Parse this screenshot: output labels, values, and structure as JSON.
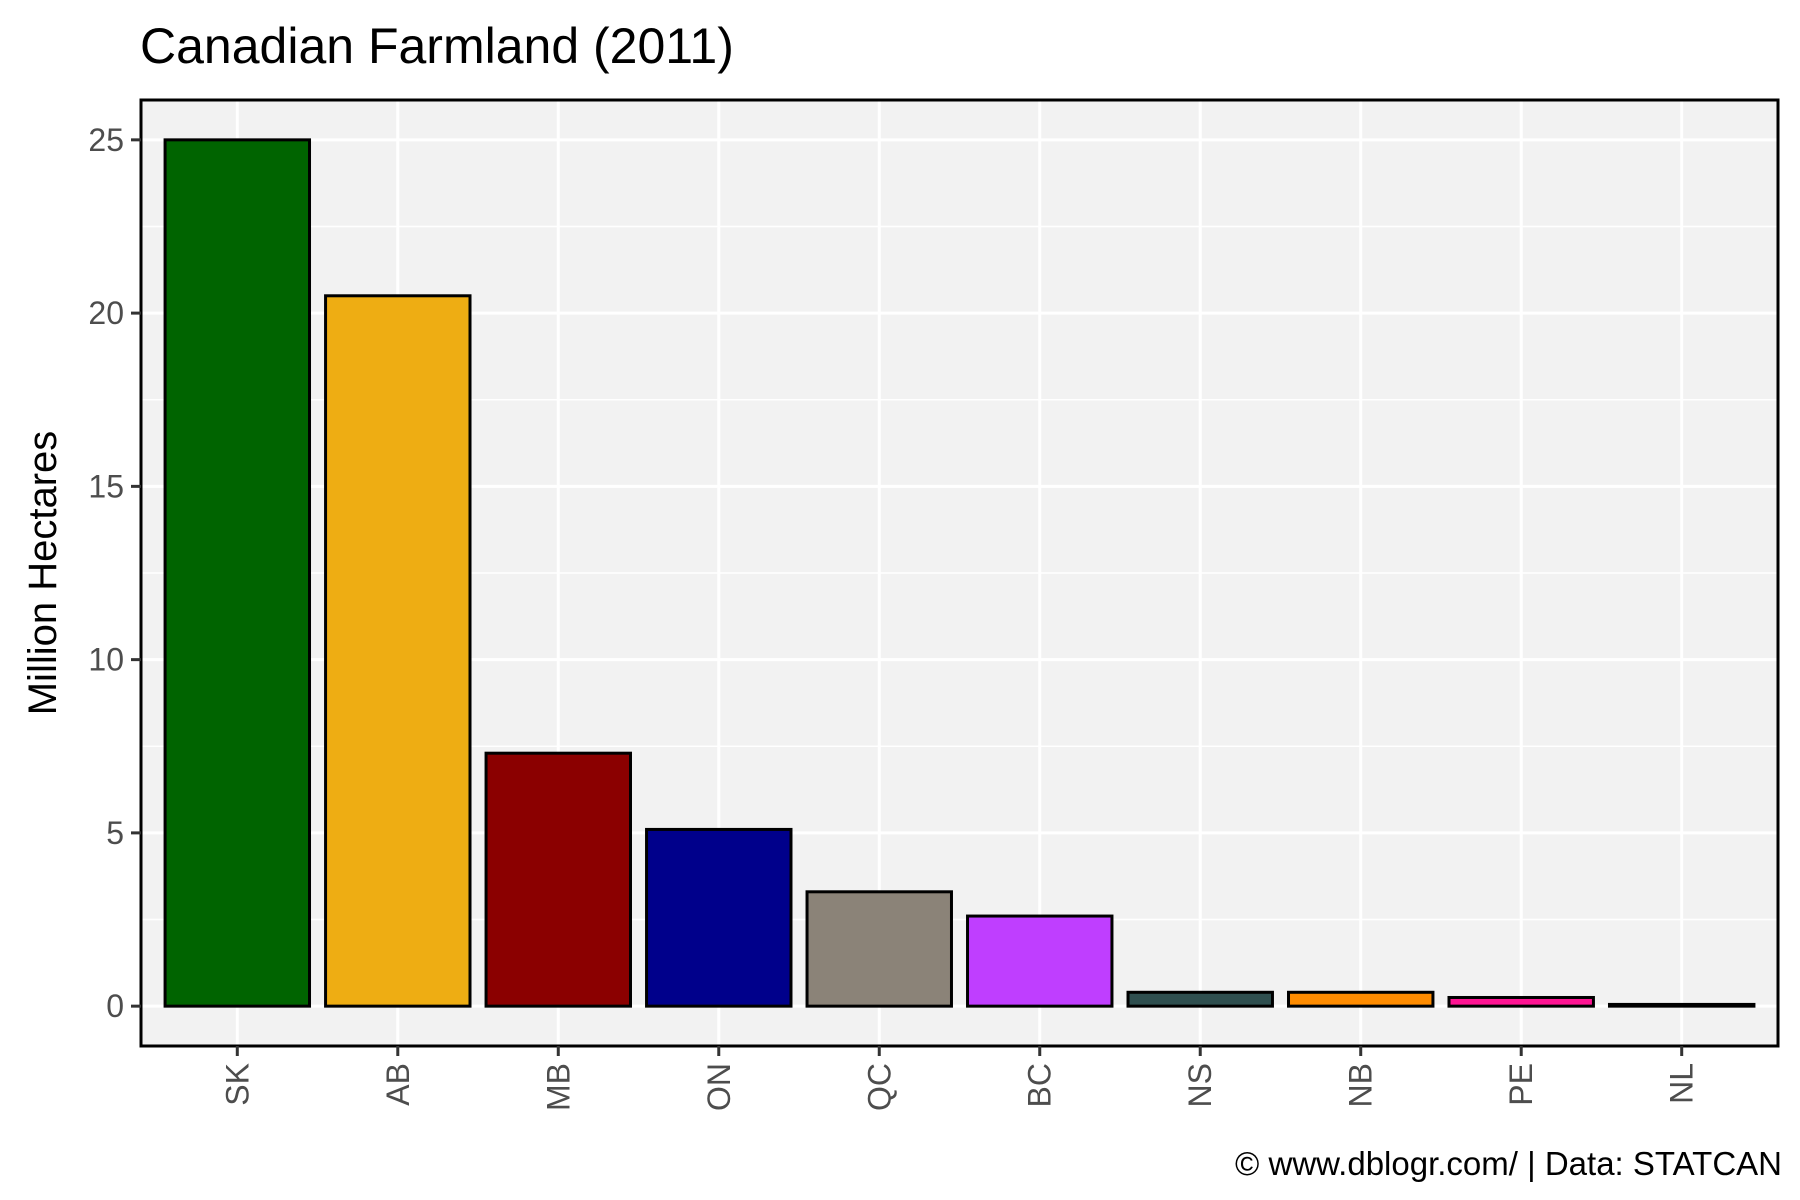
{
  "chart_data": {
    "type": "bar",
    "title": "Canadian Farmland (2011)",
    "xlabel": "",
    "ylabel": "Million Hectares",
    "categories": [
      "SK",
      "AB",
      "MB",
      "ON",
      "QC",
      "BC",
      "NS",
      "NB",
      "PE",
      "NL"
    ],
    "values": [
      25.0,
      20.5,
      7.3,
      5.1,
      3.3,
      2.6,
      0.4,
      0.4,
      0.25,
      0.05
    ],
    "colors": [
      "#006400",
      "#EEAD13",
      "#8B0000",
      "#00008B",
      "#8B8378",
      "#BF3EFF",
      "#2F4F4F",
      "#FF8C00",
      "#FF1493",
      "#000000"
    ],
    "ylim": [
      -1.15,
      26.15
    ],
    "yticks": [
      0,
      5,
      10,
      15,
      20,
      25
    ],
    "grid": true,
    "legend": "none",
    "caption": "© www.dblogr.com/  |  Data: STATCAN",
    "panel_background": "#f2f2f2",
    "gridline_color": "#ffffff"
  }
}
